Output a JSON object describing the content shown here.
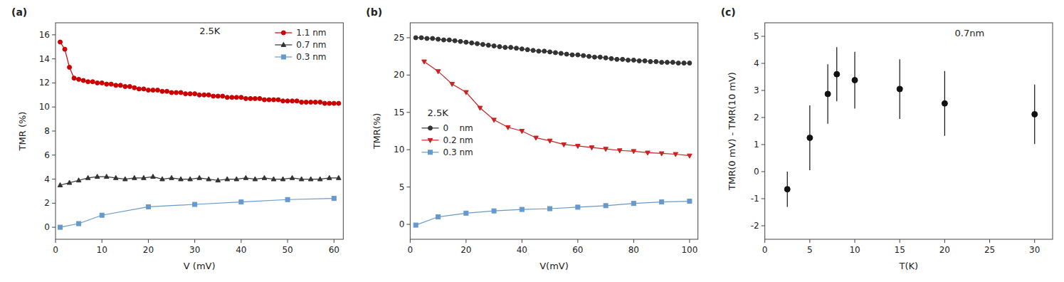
{
  "chart_data": [
    {
      "type": "line",
      "title": "(a)",
      "annotation": "2.5K",
      "xlabel": "V (mV)",
      "ylabel": "TMR (%)",
      "xlim": [
        0,
        62
      ],
      "ylim": [
        -1,
        17
      ],
      "xticks": [
        0,
        10,
        20,
        30,
        40,
        50,
        60
      ],
      "yticks": [
        0,
        2,
        4,
        6,
        8,
        10,
        12,
        14,
        16
      ],
      "legend": "upper right",
      "series": [
        {
          "name": "1.1 nm",
          "color": "#cc0000",
          "marker": "circle",
          "line_style": "solid",
          "x": [
            1,
            2,
            3,
            4,
            5,
            6,
            7,
            8,
            9,
            10,
            11,
            12,
            13,
            14,
            15,
            16,
            17,
            18,
            19,
            20,
            21,
            22,
            23,
            24,
            25,
            26,
            27,
            28,
            29,
            30,
            31,
            32,
            33,
            34,
            35,
            36,
            37,
            38,
            39,
            40,
            41,
            42,
            43,
            44,
            45,
            46,
            47,
            48,
            49,
            50,
            51,
            52,
            53,
            54,
            55,
            56,
            57,
            58,
            59,
            60,
            61
          ],
          "values": [
            15.4,
            14.8,
            13.3,
            12.4,
            12.3,
            12.2,
            12.1,
            12.1,
            12.0,
            12.0,
            11.9,
            11.9,
            11.8,
            11.8,
            11.7,
            11.7,
            11.6,
            11.5,
            11.5,
            11.4,
            11.4,
            11.4,
            11.3,
            11.3,
            11.2,
            11.2,
            11.2,
            11.1,
            11.1,
            11.1,
            11.0,
            11.0,
            11.0,
            10.9,
            10.9,
            10.9,
            10.8,
            10.8,
            10.8,
            10.8,
            10.7,
            10.7,
            10.7,
            10.7,
            10.6,
            10.6,
            10.6,
            10.6,
            10.5,
            10.5,
            10.5,
            10.5,
            10.4,
            10.4,
            10.4,
            10.4,
            10.4,
            10.3,
            10.3,
            10.3,
            10.3
          ]
        },
        {
          "name": "0.7 nm",
          "color": "#333333",
          "marker": "triangle-up",
          "line_style": "solid",
          "x": [
            1,
            3,
            5,
            7,
            9,
            11,
            13,
            15,
            17,
            19,
            21,
            23,
            25,
            27,
            29,
            31,
            33,
            35,
            37,
            39,
            41,
            43,
            45,
            47,
            49,
            51,
            53,
            55,
            57,
            59,
            61
          ],
          "values": [
            3.5,
            3.7,
            3.9,
            4.1,
            4.2,
            4.2,
            4.1,
            4.0,
            4.1,
            4.1,
            4.2,
            4.0,
            4.1,
            4.0,
            4.0,
            4.1,
            4.0,
            3.9,
            4.0,
            4.0,
            4.1,
            4.0,
            4.1,
            4.0,
            4.0,
            4.1,
            4.0,
            4.0,
            4.0,
            4.1,
            4.1
          ]
        },
        {
          "name": "0.3 nm",
          "color": "#6699cc",
          "marker": "square",
          "line_style": "solid",
          "x": [
            1,
            5,
            10,
            20,
            30,
            40,
            50,
            60
          ],
          "values": [
            0.0,
            0.3,
            1.0,
            1.7,
            1.9,
            2.1,
            2.3,
            2.4
          ]
        }
      ]
    },
    {
      "type": "line",
      "title": "(b)",
      "annotation": "2.5K",
      "xlabel": "V(mV)",
      "ylabel": "TMR(%)",
      "xlim": [
        0,
        103
      ],
      "ylim": [
        -2,
        27
      ],
      "xticks": [
        0,
        20,
        40,
        60,
        80,
        100
      ],
      "yticks": [
        0,
        5,
        10,
        15,
        20,
        25
      ],
      "legend": "center left",
      "series": [
        {
          "name": "0    nm",
          "color": "#333333",
          "marker": "circle",
          "line_style": "solid",
          "x": [
            2,
            4,
            6,
            8,
            10,
            12,
            14,
            16,
            18,
            20,
            22,
            24,
            26,
            28,
            30,
            32,
            34,
            36,
            38,
            40,
            42,
            44,
            46,
            48,
            50,
            52,
            54,
            56,
            58,
            60,
            62,
            64,
            66,
            68,
            70,
            72,
            74,
            76,
            78,
            80,
            82,
            84,
            86,
            88,
            90,
            92,
            94,
            96,
            98,
            100
          ],
          "values": [
            25.0,
            25.0,
            24.9,
            24.9,
            24.8,
            24.7,
            24.7,
            24.6,
            24.5,
            24.4,
            24.3,
            24.2,
            24.1,
            24.0,
            23.9,
            23.8,
            23.7,
            23.7,
            23.6,
            23.5,
            23.4,
            23.3,
            23.2,
            23.2,
            23.1,
            23.0,
            22.9,
            22.8,
            22.7,
            22.7,
            22.6,
            22.5,
            22.4,
            22.4,
            22.3,
            22.2,
            22.1,
            22.1,
            22.0,
            22.0,
            21.9,
            21.9,
            21.8,
            21.8,
            21.7,
            21.7,
            21.7,
            21.6,
            21.6,
            21.6
          ]
        },
        {
          "name": "0.2 nm",
          "color": "#cc2222",
          "marker": "triangle-down",
          "line_style": "solid",
          "x": [
            5,
            10,
            15,
            20,
            25,
            30,
            35,
            40,
            45,
            50,
            55,
            60,
            65,
            70,
            75,
            80,
            85,
            90,
            95,
            100
          ],
          "values": [
            21.8,
            20.5,
            18.8,
            17.7,
            15.6,
            14.0,
            13.0,
            12.5,
            11.6,
            11.2,
            10.7,
            10.5,
            10.3,
            10.1,
            9.9,
            9.8,
            9.6,
            9.5,
            9.4,
            9.2
          ]
        },
        {
          "name": "0.3 nm",
          "color": "#6699cc",
          "marker": "square",
          "line_style": "solid",
          "x": [
            2,
            10,
            20,
            30,
            40,
            50,
            60,
            70,
            80,
            90,
            100
          ],
          "values": [
            -0.1,
            1.0,
            1.5,
            1.8,
            2.0,
            2.1,
            2.3,
            2.5,
            2.8,
            3.0,
            3.1
          ]
        }
      ]
    },
    {
      "type": "scatter",
      "title": "(c)",
      "annotation": "0.7nm",
      "xlabel": "T(K)",
      "ylabel": "TMR(0 mV) - TMR(10 mV)",
      "xlim": [
        0,
        32
      ],
      "ylim": [
        -2.5,
        5.5
      ],
      "xticks": [
        0,
        5,
        10,
        15,
        20,
        25,
        30
      ],
      "yticks": [
        -2,
        -1,
        0,
        1,
        2,
        3,
        4,
        5
      ],
      "color": "#111111",
      "marker": "circle",
      "x": [
        2.5,
        5,
        7,
        8,
        10,
        15,
        20,
        30
      ],
      "values": [
        -0.65,
        1.25,
        2.87,
        3.6,
        3.38,
        3.05,
        2.52,
        2.12
      ],
      "yerr": [
        0.65,
        1.2,
        1.1,
        1.0,
        1.05,
        1.1,
        1.2,
        1.1
      ]
    }
  ]
}
